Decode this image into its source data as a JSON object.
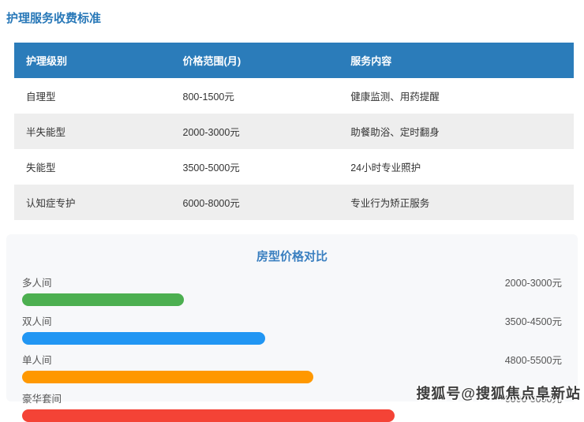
{
  "page": {
    "title": "护理服务收费标准"
  },
  "table": {
    "headers": [
      "护理级别",
      "价格范围(月)",
      "服务内容"
    ],
    "rows": [
      {
        "level": "自理型",
        "price": "800-1500元",
        "service": "健康监测、用药提醒"
      },
      {
        "level": "半失能型",
        "price": "2000-3000元",
        "service": "助餐助浴、定时翻身"
      },
      {
        "level": "失能型",
        "price": "3500-5000元",
        "service": "24小时专业照护"
      },
      {
        "level": "认知症专护",
        "price": "6000-8000元",
        "service": "专业行为矫正服务"
      }
    ]
  },
  "chart": {
    "title": "房型价格对比",
    "bars": [
      {
        "label": "多人间",
        "value": "2000-3000元",
        "color": "#4caf50",
        "width_pct": 30
      },
      {
        "label": "双人间",
        "value": "3500-4500元",
        "color": "#2196f3",
        "width_pct": 45
      },
      {
        "label": "单人间",
        "value": "4800-5500元",
        "color": "#ff9800",
        "width_pct": 54
      },
      {
        "label": "豪华套间",
        "value": "6000-8000元",
        "color": "#f44336",
        "width_pct": 69
      }
    ]
  },
  "watermark": "搜狐号@搜狐焦点阜新站",
  "colors": {
    "title_blue": "#2878b8",
    "table_header_bg": "#2b7cba",
    "table_alt_row_bg": "#eeeeee",
    "card_bg": "#f7f8fa",
    "chart_title_blue": "#3a7fc0",
    "bar_green": "#4caf50",
    "bar_blue": "#2196f3",
    "bar_orange": "#ff9800",
    "bar_red": "#f44336"
  },
  "chart_data": [
    {
      "type": "table",
      "title": "护理服务收费标准",
      "columns": [
        "护理级别",
        "价格范围(月)",
        "服务内容"
      ],
      "rows": [
        [
          "自理型",
          "800-1500元",
          "健康监测、用药提醒"
        ],
        [
          "半失能型",
          "2000-3000元",
          "助餐助浴、定时翻身"
        ],
        [
          "失能型",
          "3500-5000元",
          "24小时专业照护"
        ],
        [
          "认知症专护",
          "6000-8000元",
          "专业行为矫正服务"
        ]
      ]
    },
    {
      "type": "bar",
      "orientation": "horizontal",
      "title": "房型价格对比",
      "categories": [
        "多人间",
        "双人间",
        "单人间",
        "豪华套间"
      ],
      "value_labels": [
        "2000-3000元",
        "3500-4500元",
        "4800-5500元",
        "6000-8000元"
      ],
      "values_min": [
        2000,
        3500,
        4800,
        6000
      ],
      "values_max": [
        3000,
        4500,
        5500,
        8000
      ],
      "unit": "元",
      "bar_colors": [
        "#4caf50",
        "#2196f3",
        "#ff9800",
        "#f44336"
      ],
      "legend": "none",
      "grid": false
    }
  ]
}
